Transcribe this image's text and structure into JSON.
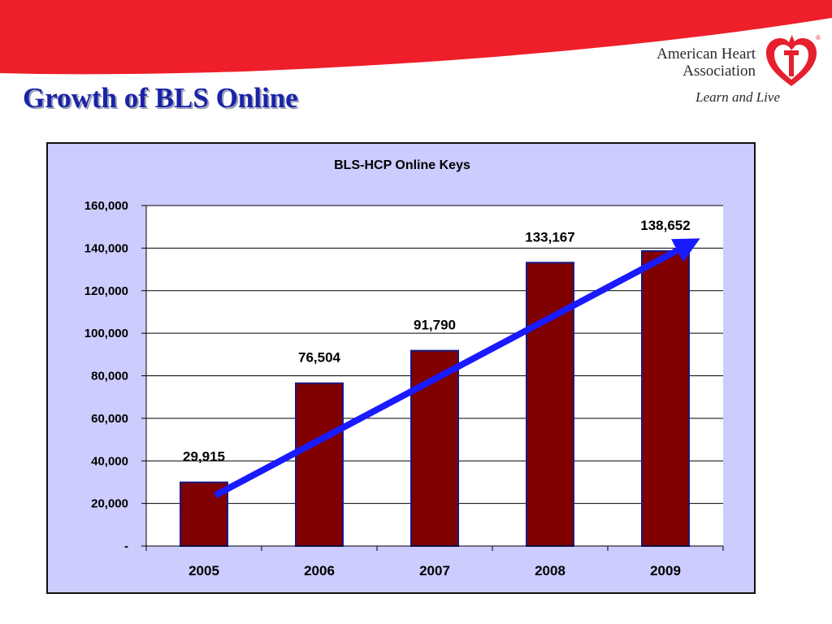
{
  "slide": {
    "title": "Growth of BLS Online"
  },
  "logo": {
    "line1": "American Heart",
    "line2": "Association",
    "tagline": "Learn and Live",
    "registered": "®"
  },
  "colors": {
    "banner_red": "#ee1f2a",
    "title_blue": "#1a23a8",
    "chart_bg": "#ccccff",
    "bar_fill": "#800000",
    "bar_stroke": "#1a1a80",
    "arrow_blue": "#1a1aff"
  },
  "chart_data": {
    "type": "bar",
    "title": "BLS-HCP Online Keys",
    "categories": [
      "2005",
      "2006",
      "2007",
      "2008",
      "2009"
    ],
    "values": [
      29915,
      76504,
      91790,
      133167,
      138652
    ],
    "data_labels": [
      "29,915",
      "76,504",
      "91,790",
      "133,167",
      "138,652"
    ],
    "ylim": [
      0,
      160000
    ],
    "yticks": [
      0,
      20000,
      40000,
      60000,
      80000,
      100000,
      120000,
      140000,
      160000
    ],
    "ytick_labels": [
      "-",
      "20,000",
      "40,000",
      "60,000",
      "80,000",
      "100,000",
      "120,000",
      "140,000",
      "160,000"
    ],
    "xlabel": "",
    "ylabel": "",
    "grid": true,
    "legend": false,
    "trend_arrow": {
      "from_value": 25000,
      "to_value": 142000,
      "from_category": "2005",
      "to_category": "2009"
    }
  }
}
